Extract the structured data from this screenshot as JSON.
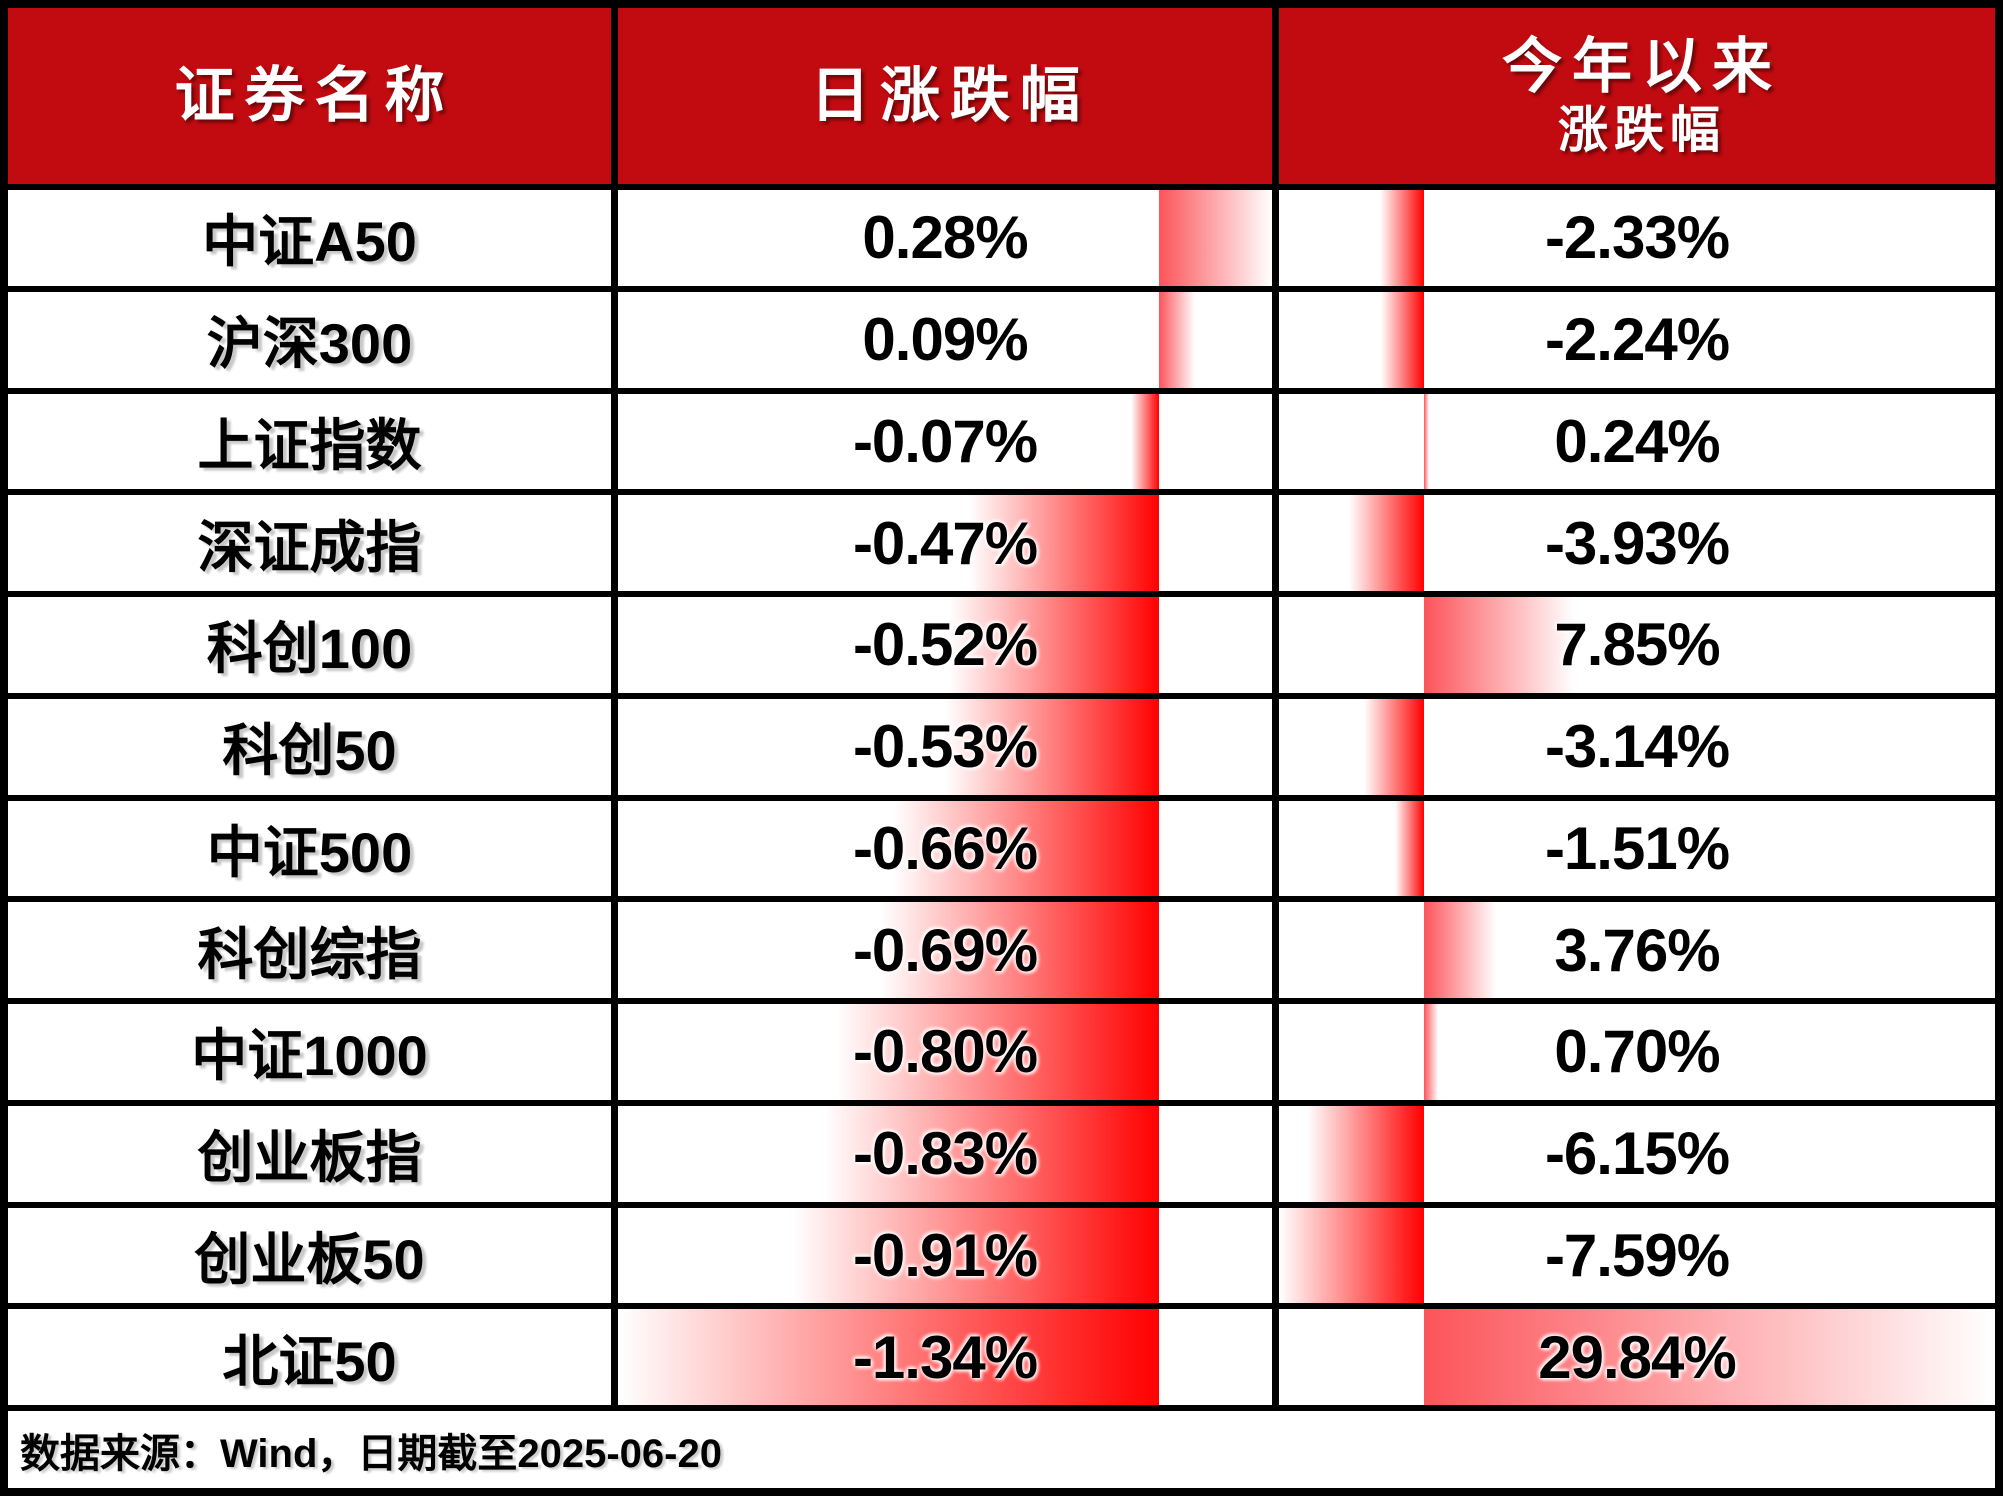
{
  "table": {
    "headers": {
      "name": "证券名称",
      "daily": "日涨跌幅",
      "ytd_line1": "今年以来",
      "ytd_line2": "涨跌幅"
    },
    "rows": [
      {
        "name": "中证A50",
        "day_label": "0.28%",
        "day_value": 0.28,
        "ytd_label": "-2.33%",
        "ytd_value": -2.33
      },
      {
        "name": "沪深300",
        "day_label": "0.09%",
        "day_value": 0.09,
        "ytd_label": "-2.24%",
        "ytd_value": -2.24
      },
      {
        "name": "上证指数",
        "day_label": "-0.07%",
        "day_value": -0.07,
        "ytd_label": "0.24%",
        "ytd_value": 0.24
      },
      {
        "name": "深证成指",
        "day_label": "-0.47%",
        "day_value": -0.47,
        "ytd_label": "-3.93%",
        "ytd_value": -3.93
      },
      {
        "name": "科创100",
        "day_label": "-0.52%",
        "day_value": -0.52,
        "ytd_label": "7.85%",
        "ytd_value": 7.85
      },
      {
        "name": "科创50",
        "day_label": "-0.53%",
        "day_value": -0.53,
        "ytd_label": "-3.14%",
        "ytd_value": -3.14
      },
      {
        "name": "中证500",
        "day_label": "-0.66%",
        "day_value": -0.66,
        "ytd_label": "-1.51%",
        "ytd_value": -1.51
      },
      {
        "name": "科创综指",
        "day_label": "-0.69%",
        "day_value": -0.69,
        "ytd_label": "3.76%",
        "ytd_value": 3.76
      },
      {
        "name": "中证1000",
        "day_label": "-0.80%",
        "day_value": -0.8,
        "ytd_label": "0.70%",
        "ytd_value": 0.7
      },
      {
        "name": "创业板指",
        "day_label": "-0.83%",
        "day_value": -0.83,
        "ytd_label": "-6.15%",
        "ytd_value": -6.15
      },
      {
        "name": "创业板50",
        "day_label": "-0.91%",
        "day_value": -0.91,
        "ytd_label": "-7.59%",
        "ytd_value": -7.59
      },
      {
        "name": "北证50",
        "day_label": "-1.34%",
        "day_value": -1.34,
        "ytd_label": "29.84%",
        "ytd_value": 29.84
      }
    ],
    "footer": "数据来源：Wind，日期截至2025-06-20",
    "colors": {
      "header_bg": "#c20b10",
      "border": "#000000",
      "bar_positive": "#fc545a",
      "bar_negative": "#ff0000",
      "header_text": "#ffffff",
      "body_text": "#000000"
    }
  },
  "chart_data": {
    "type": "table",
    "title": "",
    "categories": [
      "中证A50",
      "沪深300",
      "上证指数",
      "深证成指",
      "科创100",
      "科创50",
      "中证500",
      "科创综指",
      "中证1000",
      "创业板指",
      "创业板50",
      "北证50"
    ],
    "columns": [
      "证券名称",
      "日涨跌幅",
      "今年以来涨跌幅"
    ],
    "series": [
      {
        "name": "日涨跌幅",
        "values": [
          0.28,
          0.09,
          -0.07,
          -0.47,
          -0.52,
          -0.53,
          -0.66,
          -0.69,
          -0.8,
          -0.83,
          -0.91,
          -1.34
        ]
      },
      {
        "name": "今年以来涨跌幅",
        "values": [
          -2.33,
          -2.24,
          0.24,
          -3.93,
          7.85,
          -3.14,
          -1.51,
          3.76,
          0.7,
          -6.15,
          -7.59,
          29.84
        ]
      }
    ],
    "annotations": [
      "数据来源：Wind，日期截至2025-06-20"
    ],
    "layout_hints": {
      "databars": "excel-style gradient data bars behind values, axis auto-positioned per column, red fading to white toward bar tip",
      "negative_bar_color": "#ff0000",
      "positive_bar_color": "#fc545a"
    }
  }
}
